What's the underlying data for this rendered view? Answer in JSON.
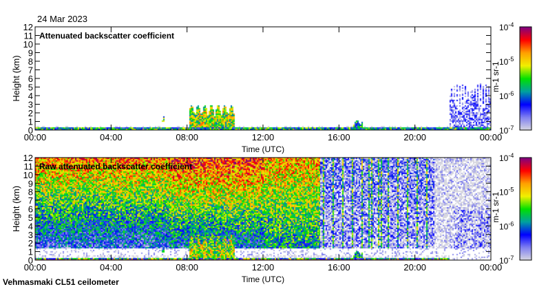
{
  "date_label": "24 Mar 2023",
  "footer": "Vehmasmaki CL51 ceilometer",
  "chart_data": [
    {
      "type": "heatmap",
      "title": "Attenuated backscatter coefficient",
      "xlabel": "Time (UTC)",
      "ylabel": "Height (km)",
      "xlim": [
        0,
        24
      ],
      "ylim": [
        0,
        12
      ],
      "x_ticks": [
        "00:00",
        "04:00",
        "08:00",
        "12:00",
        "16:00",
        "20:00",
        "00:00"
      ],
      "y_ticks": [
        "0",
        "1",
        "2",
        "3",
        "4",
        "5",
        "6",
        "7",
        "8",
        "9",
        "10",
        "11",
        "12"
      ],
      "colorbar": {
        "label": "m-1 sr-1",
        "scale": "log",
        "range": [
          1e-07,
          0.0001
        ],
        "ticks": [
          "10-7",
          "10-6",
          "10-5",
          "10-4"
        ]
      },
      "features": [
        {
          "name": "boundary layer",
          "t": [
            0,
            24
          ],
          "h": [
            0,
            0.4
          ],
          "log_value": -5.0
        },
        {
          "name": "cloud",
          "t": [
            8.1,
            10.5
          ],
          "h": [
            0,
            3.0
          ],
          "log_value": -5.3
        },
        {
          "name": "cloud",
          "t": [
            6.6,
            6.8
          ],
          "h": [
            1.0,
            1.8
          ],
          "log_value": -5.5
        },
        {
          "name": "cloud",
          "t": [
            16.7,
            17.2
          ],
          "h": [
            0.3,
            1.2
          ],
          "log_value": -5.8
        },
        {
          "name": "noise/aerosol",
          "t": [
            21.8,
            24
          ],
          "h": [
            0,
            5.5
          ],
          "log_value": -6.6
        }
      ]
    },
    {
      "type": "heatmap",
      "title": "Raw attenuated backscatter coefficient",
      "xlabel": "Time (UTC)",
      "ylabel": "Height (km)",
      "xlim": [
        0,
        24
      ],
      "ylim": [
        0,
        12
      ],
      "x_ticks": [
        "00:00",
        "04:00",
        "08:00",
        "12:00",
        "16:00",
        "20:00",
        "00:00"
      ],
      "y_ticks": [
        "0",
        "1",
        "2",
        "3",
        "4",
        "5",
        "6",
        "7",
        "8",
        "9",
        "10",
        "11",
        "12"
      ],
      "colorbar": {
        "label": "m-1 sr-1",
        "scale": "log",
        "range": [
          1e-07,
          0.0001
        ],
        "ticks": [
          "10-7",
          "10-6",
          "10-5",
          "10-4"
        ]
      }
    }
  ],
  "colors": {
    "stops": [
      "#d8d8e0",
      "#8080f0",
      "#0000ff",
      "#00a0a0",
      "#00e000",
      "#f0f000",
      "#ffa000",
      "#ff0000",
      "#800080"
    ]
  }
}
